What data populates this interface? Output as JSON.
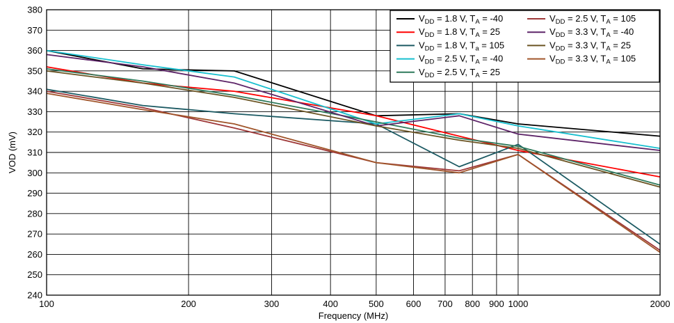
{
  "chart_data": {
    "type": "line",
    "xlabel": "Frequency (MHz)",
    "ylabel": "VOD (mV)",
    "xscale": "log",
    "xlim": [
      100,
      2000
    ],
    "ylim": [
      240,
      380
    ],
    "xticks": [
      100,
      200,
      300,
      400,
      500,
      600,
      700,
      800,
      900,
      1000,
      2000
    ],
    "yticks": [
      240,
      250,
      260,
      270,
      280,
      290,
      300,
      310,
      320,
      330,
      340,
      350,
      360,
      370,
      380
    ],
    "grid": true,
    "legend_position": "top-right",
    "series": [
      {
        "name": "V_DD = 1.8 V, T_A = -40",
        "color": "#000000",
        "x": [
          100,
          160,
          250,
          500,
          750,
          1000,
          2000
        ],
        "y": [
          360,
          351,
          350,
          328,
          329,
          324,
          318
        ]
      },
      {
        "name": "V_DD = 1.8 V, T_A = 25",
        "color": "#ff0000",
        "x": [
          100,
          160,
          250,
          500,
          750,
          1000,
          2000
        ],
        "y": [
          352,
          344,
          340,
          328,
          318,
          311,
          298
        ]
      },
      {
        "name": "V_DD = 1.8 V, T_a = 105",
        "color": "#1c5a63",
        "x": [
          100,
          160,
          250,
          500,
          750,
          1000,
          2000
        ],
        "y": [
          341,
          333,
          329,
          324,
          303,
          314,
          265
        ]
      },
      {
        "name": "V_DD = 2.5 V, T_A = -40",
        "color": "#17bfcf",
        "x": [
          100,
          160,
          250,
          500,
          750,
          1000,
          2000
        ],
        "y": [
          360,
          353,
          347,
          324,
          329,
          323,
          312
        ]
      },
      {
        "name": "V_DD = 2.5 V, T_A = 25",
        "color": "#2e7a5b",
        "x": [
          100,
          160,
          250,
          500,
          750,
          1000,
          2000
        ],
        "y": [
          351,
          345,
          338,
          325,
          317,
          313,
          294
        ]
      },
      {
        "name": "V_DD = 2.5 V, T_A = 105",
        "color": "#9e3838",
        "x": [
          100,
          160,
          250,
          500,
          750,
          1000,
          2000
        ],
        "y": [
          340,
          332,
          322,
          305,
          301,
          309,
          262
        ]
      },
      {
        "name": "V_DD = 3.3 V, T_A = -40",
        "color": "#5d2468",
        "x": [
          100,
          160,
          250,
          500,
          750,
          1000,
          2000
        ],
        "y": [
          358,
          352,
          344,
          323,
          328,
          319,
          311
        ]
      },
      {
        "name": "V_DD = 3.3 V, T_A = 25",
        "color": "#6b5423",
        "x": [
          100,
          160,
          250,
          500,
          750,
          1000,
          2000
        ],
        "y": [
          350,
          344,
          337,
          323,
          316,
          312,
          293
        ]
      },
      {
        "name": "V_DD = 3.3 V, T_A = 105",
        "color": "#a0552a",
        "x": [
          100,
          160,
          250,
          500,
          750,
          1000,
          2000
        ],
        "y": [
          339,
          331,
          324,
          305,
          300,
          309,
          261
        ]
      }
    ],
    "legend": {
      "left_column": [
        {
          "sub": "DD",
          "v": " = 1.8 V, T",
          "tsub": "A",
          "rest": " = -40",
          "series": 0
        },
        {
          "sub": "DD",
          "v": " = 1.8 V, T",
          "tsub": "A",
          "rest": " = 25",
          "series": 1
        },
        {
          "sub": "DD",
          "v": " = 1.8 V, T",
          "tsub": "a",
          "rest": " = 105",
          "series": 2
        },
        {
          "sub": "DD",
          "v": " = 2.5 V, T",
          "tsub": "A",
          "rest": " = -40",
          "series": 3
        },
        {
          "sub": "DD",
          "v": " = 2.5 V, T",
          "tsub": "A",
          "rest": " = 25",
          "series": 4
        }
      ],
      "right_column": [
        {
          "sub": "DD",
          "v": " = 2.5 V, T",
          "tsub": "A",
          "rest": " = 105",
          "series": 5
        },
        {
          "sub": "DD",
          "v": " = 3.3 V, T",
          "tsub": "A",
          "rest": " = -40",
          "series": 6
        },
        {
          "sub": "DD",
          "v": " = 3.3 V, T",
          "tsub": "A",
          "rest": " = 25",
          "series": 7
        },
        {
          "sub": "DD",
          "v": " = 3.3 V, T",
          "tsub": "A",
          "rest": " = 105",
          "series": 8
        }
      ]
    }
  }
}
